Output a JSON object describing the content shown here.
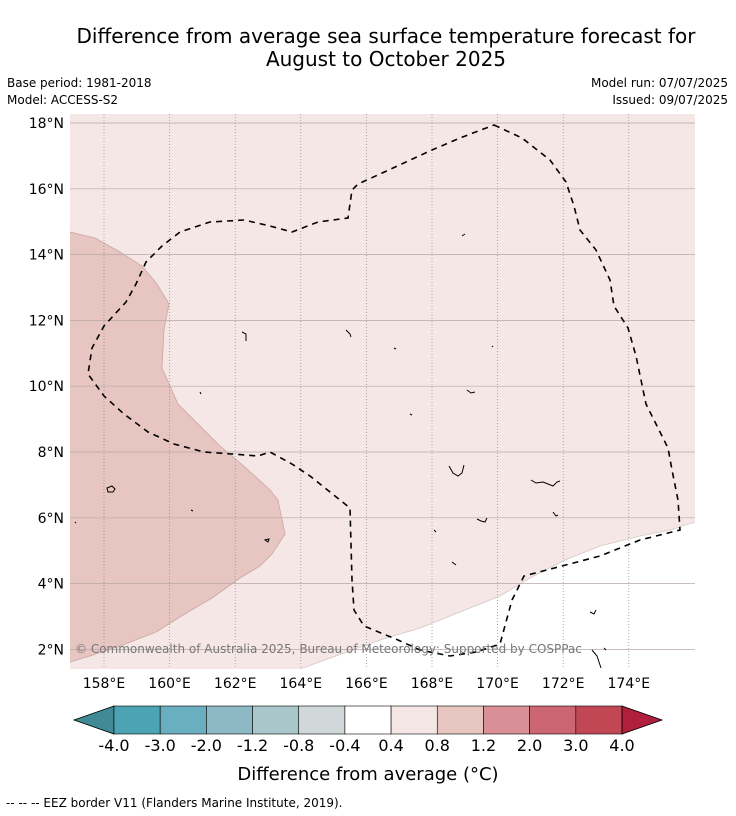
{
  "title": {
    "line1": "Difference from average sea surface temperature forecast for",
    "line2": "August to October 2025"
  },
  "meta": {
    "base_period": "Base period: 1981-2018",
    "model": "Model: ACCESS-S2",
    "model_run": "Model run: 07/07/2025",
    "issued": "Issued: 09/07/2025"
  },
  "map": {
    "lat_labels": [
      "18°N",
      "16°N",
      "14°N",
      "12°N",
      "10°N",
      "8°N",
      "6°N",
      "4°N",
      "2°N"
    ],
    "lat_values": [
      18,
      16,
      14,
      12,
      10,
      8,
      6,
      4,
      2
    ],
    "lon_labels": [
      "158°E",
      "160°E",
      "162°E",
      "164°E",
      "166°E",
      "168°E",
      "170°E",
      "172°E",
      "174°E"
    ],
    "lon_values": [
      158,
      160,
      162,
      164,
      166,
      168,
      170,
      172,
      174
    ],
    "copyright": "© Commonwealth of Australia 2025, Bureau of Meteorology; Supported by COSPPac",
    "colors": {
      "light_pink": "#f5e7e6",
      "mid_pink": "#e7c5c1",
      "white": "#ffffff"
    }
  },
  "colorbar": {
    "tick_labels": [
      "-4.0",
      "-3.0",
      "-2.0",
      "-1.2",
      "-0.8",
      "-0.4",
      "0.4",
      "0.8",
      "1.2",
      "2.0",
      "3.0",
      "4.0"
    ],
    "colors": [
      "#3f8a94",
      "#4ba3b4",
      "#6aafbf",
      "#8db9c5",
      "#a9c6cb",
      "#d1d8da",
      "#ffffff",
      "#f5e7e6",
      "#e7c5c1",
      "#d88f98",
      "#cb6672",
      "#c14755",
      "#b01f3d"
    ],
    "title": "Difference from average (°C)"
  },
  "footnote": "--  --  -- EEZ border V11 (Flanders Marine Institute, 2019)."
}
